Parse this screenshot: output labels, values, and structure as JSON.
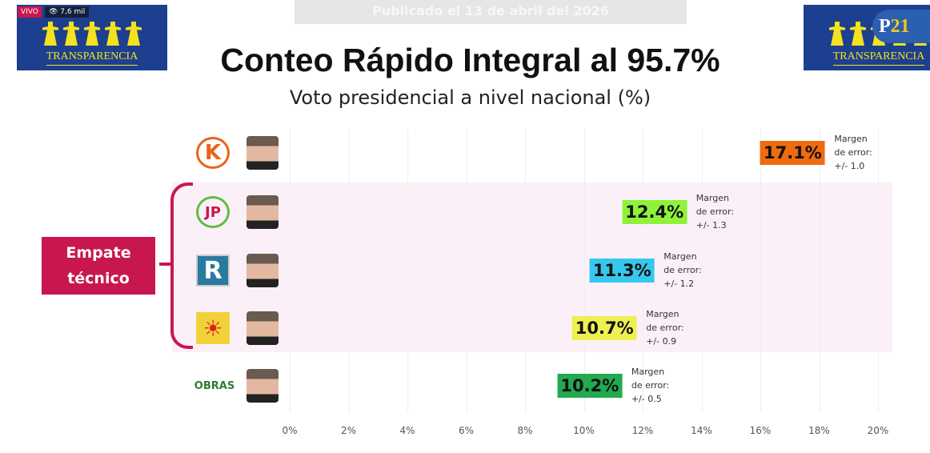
{
  "broadcast": {
    "live_badge": "VIVO",
    "viewers": "7,6 mil",
    "published": "Publicado el 13 de abril del 2026",
    "channel_logo": "P21"
  },
  "logo": {
    "text": "TRANSPARENCIA"
  },
  "chart_data": {
    "type": "bar",
    "title": "Conteo Rápido Integral al 95.7%",
    "subtitle": "Voto presidencial a nivel nacional (%)",
    "xlim": [
      0,
      20
    ],
    "ticks": [
      "0%",
      "2%",
      "4%",
      "6%",
      "8%",
      "10%",
      "12%",
      "14%",
      "16%",
      "18%",
      "20%"
    ],
    "grid": true,
    "group_label": "Empate técnico",
    "rows": [
      {
        "party_logo": "K",
        "value": 17.1,
        "label": "17.1%",
        "color": "#f06a0f",
        "moe": [
          "Margen",
          "de error:",
          "+/- 1.0"
        ],
        "tie": false
      },
      {
        "party_logo": "JP",
        "value": 12.4,
        "label": "12.4%",
        "color": "#8ef23a",
        "moe": [
          "Margen",
          "de error:",
          "+/- 1.3"
        ],
        "tie": true
      },
      {
        "party_logo": "R",
        "value": 11.3,
        "label": "11.3%",
        "color": "#35c8ee",
        "moe": [
          "Margen",
          "de error:",
          "+/- 1.2"
        ],
        "tie": true
      },
      {
        "party_logo": "sun",
        "value": 10.7,
        "label": "10.7%",
        "color": "#eef050",
        "moe": [
          "Margen",
          "de error:",
          "+/- 0.9"
        ],
        "tie": true
      },
      {
        "party_logo": "OBRAS",
        "value": 10.2,
        "label": "10.2%",
        "color": "#22aa50",
        "moe": [
          "Margen",
          "de error:",
          "+/- 0.5"
        ],
        "tie": false
      }
    ]
  }
}
